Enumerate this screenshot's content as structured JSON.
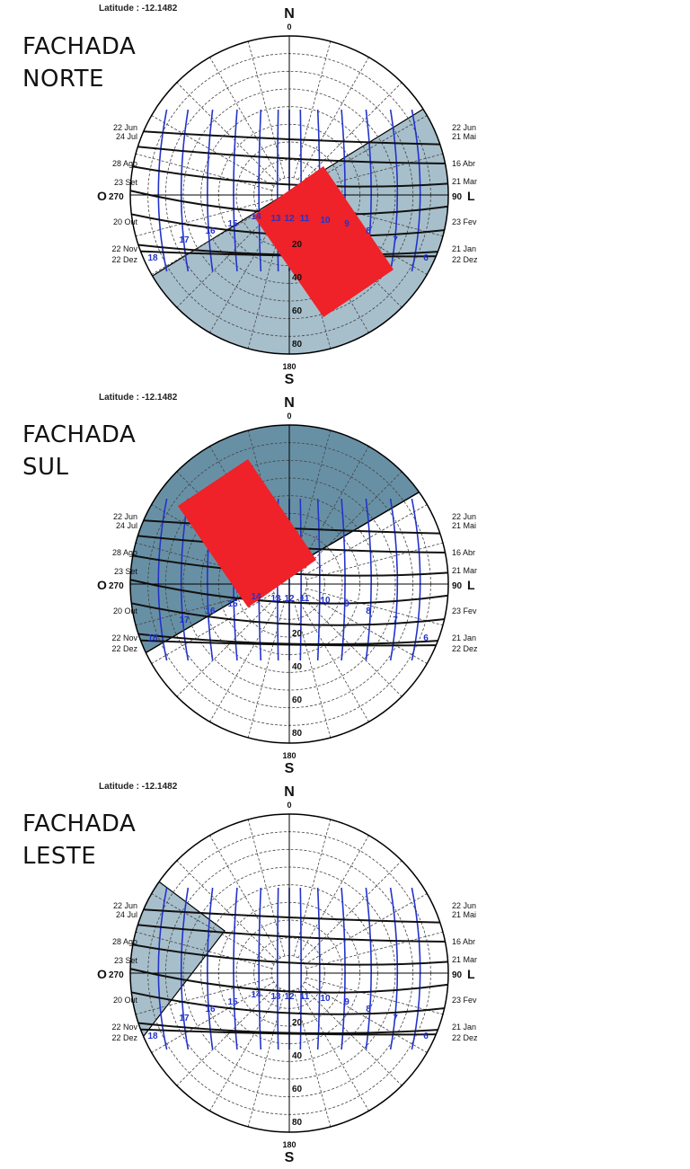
{
  "panels": [
    {
      "id": "norte",
      "title_line1": "FACHADA",
      "title_line2": "NORTE",
      "latitude_label": "Latitude : -12.1482",
      "shade": "south",
      "shade_color": "#a7bfcb",
      "rect_color": "#ee2228"
    },
    {
      "id": "sul",
      "title_line1": "FACHADA",
      "title_line2": "SUL",
      "latitude_label": "Latitude : -12.1482",
      "shade": "north",
      "shade_color": "#6890a5",
      "rect_color": "#ee2228"
    },
    {
      "id": "leste",
      "title_line1": "FACHADA",
      "title_line2": "LESTE",
      "latitude_label": "Latitude : -12.1482",
      "shade": "west",
      "shade_color": "#a7bfcb",
      "rect_color": "#ee2228"
    }
  ],
  "compass": {
    "n_letter": "N",
    "n_deg": "0",
    "s_letter": "S",
    "s_deg": "180",
    "e_letter": "L",
    "e_deg": "90",
    "w_letter": "O",
    "w_deg": "270"
  },
  "left_dates": [
    "22 Jun",
    "24 Jul",
    "28 Ago",
    "23 Set",
    "20 Out",
    "22 Nov",
    "22 Dez"
  ],
  "right_dates": [
    "22 Jun",
    "21 Mai",
    "16 Abr",
    "21 Mar",
    "23 Fev",
    "21 Jan",
    "22 Dez"
  ],
  "hours": [
    "18",
    "17",
    "16",
    "15",
    "14",
    "13",
    "12",
    "11",
    "10",
    "9",
    "8",
    "7",
    "6"
  ],
  "altitude_labels": [
    "20",
    "40",
    "60",
    "80"
  ],
  "colors": {
    "path_line": "#111111",
    "hour_line": "#2233cc",
    "grid": "#444444"
  }
}
